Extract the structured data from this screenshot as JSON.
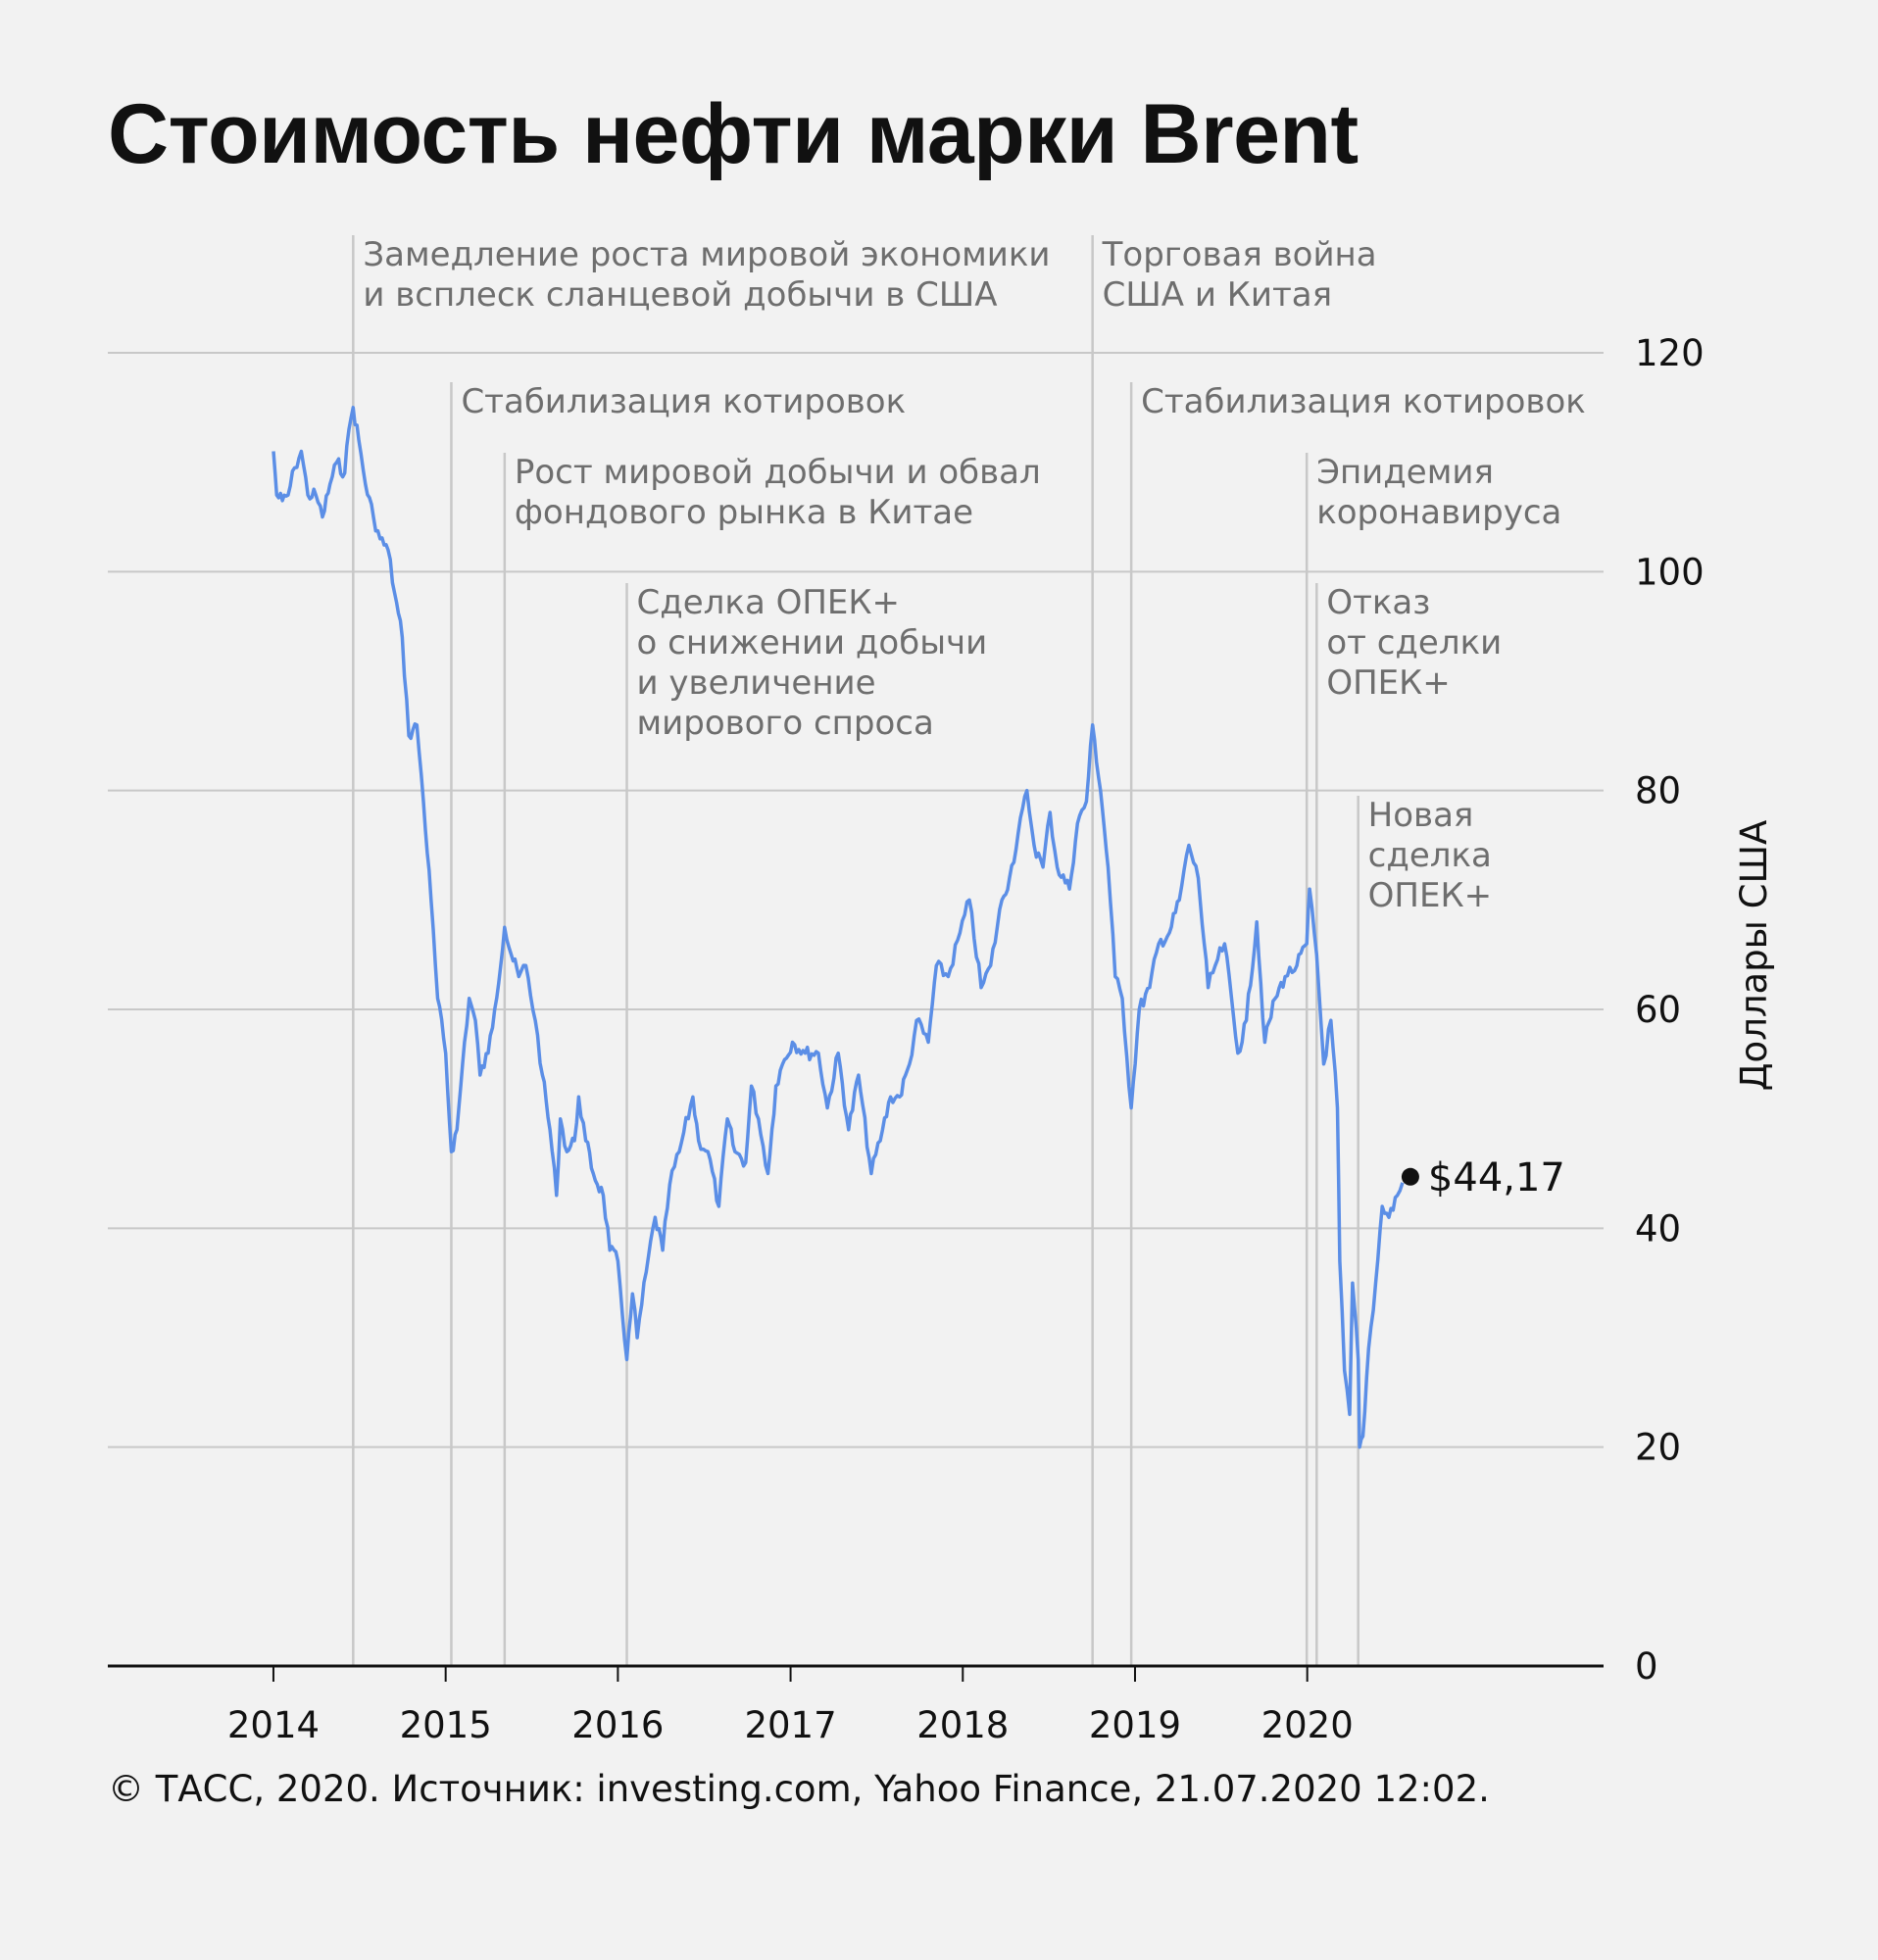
{
  "title": "Стоимость нефти марки Brent",
  "footer": "© ТАСС, 2020. Источник: investing.com, Yahoo Finance, 21.07.2020 12:02.",
  "colors": {
    "line": "#5b8ee6",
    "grid": "#c8c8c8",
    "axis": "#111111",
    "annotation_text": "#6e6e6e",
    "background": "#f2f2f2"
  },
  "chart_data": {
    "type": "line",
    "title": "Стоимость нефти марки Brent",
    "ylabel": "Доллары США",
    "ylim": [
      0,
      120
    ],
    "yticks": [
      0,
      20,
      40,
      60,
      80,
      100,
      120
    ],
    "xlim": [
      "2013-01-15",
      "2021-09-20"
    ],
    "xticks": [
      {
        "label": "2014",
        "date": "2014-01-01"
      },
      {
        "label": "2015",
        "date": "2015-01-01"
      },
      {
        "label": "2016",
        "date": "2016-01-01"
      },
      {
        "label": "2017",
        "date": "2017-01-01"
      },
      {
        "label": "2018",
        "date": "2018-01-01"
      },
      {
        "label": "2019",
        "date": "2019-01-01"
      },
      {
        "label": "2020",
        "date": "2020-01-01"
      }
    ],
    "grid": true,
    "last_point": {
      "date": "2020-07-21",
      "value": 44.17,
      "label": "$44,17"
    },
    "annotations": [
      {
        "date": "2014-06-19",
        "lines": [
          "Замедление роста мировой экономики",
          "и всплеск сланцевой добычи в США"
        ]
      },
      {
        "date": "2015-01-13",
        "lines": [
          "Стабилизация котировок"
        ]
      },
      {
        "date": "2015-05-06",
        "lines": [
          "Рост мировой добычи и обвал",
          "фондового рынка в Китае"
        ]
      },
      {
        "date": "2016-01-20",
        "lines": [
          "Сделка ОПЕК+",
          "о снижении добычи",
          "и увеличение",
          "мирового спроса"
        ]
      },
      {
        "date": "2018-10-03",
        "lines": [
          "Торговая война",
          "США и Китая"
        ]
      },
      {
        "date": "2018-12-24",
        "lines": [
          "Стабилизация котировок"
        ]
      },
      {
        "date": "2019-12-31",
        "lines": [
          "Эпидемия",
          "коронавируса"
        ]
      },
      {
        "date": "2020-01-21",
        "lines": [
          "Отказ",
          "от сделки",
          "ОПЕК+"
        ]
      },
      {
        "date": "2020-04-18",
        "lines": [
          "Новая",
          "сделка",
          "ОПЕК+"
        ]
      }
    ],
    "series": [
      {
        "values": [
          [
            "2014-01-01",
            111
          ],
          [
            "2014-01-08",
            107
          ],
          [
            "2014-01-20",
            106.5
          ],
          [
            "2014-02-01",
            107
          ],
          [
            "2014-02-15",
            109.5
          ],
          [
            "2014-03-01",
            111
          ],
          [
            "2014-03-15",
            107
          ],
          [
            "2014-04-01",
            107
          ],
          [
            "2014-04-15",
            105
          ],
          [
            "2014-05-01",
            108
          ],
          [
            "2014-05-15",
            110
          ],
          [
            "2014-06-01",
            109
          ],
          [
            "2014-06-10",
            113
          ],
          [
            "2014-06-19",
            115
          ],
          [
            "2014-07-01",
            112
          ],
          [
            "2014-07-15",
            108
          ],
          [
            "2014-08-01",
            105
          ],
          [
            "2014-08-15",
            103
          ],
          [
            "2014-09-01",
            102
          ],
          [
            "2014-09-15",
            98
          ],
          [
            "2014-10-01",
            94
          ],
          [
            "2014-10-15",
            85
          ],
          [
            "2014-11-01",
            86
          ],
          [
            "2014-11-15",
            79
          ],
          [
            "2014-12-01",
            70
          ],
          [
            "2014-12-15",
            61
          ],
          [
            "2015-01-01",
            56
          ],
          [
            "2015-01-13",
            47
          ],
          [
            "2015-01-25",
            49
          ],
          [
            "2015-02-10",
            57
          ],
          [
            "2015-02-20",
            61
          ],
          [
            "2015-03-05",
            59
          ],
          [
            "2015-03-15",
            54
          ],
          [
            "2015-04-01",
            56
          ],
          [
            "2015-04-15",
            60
          ],
          [
            "2015-05-06",
            67.5
          ],
          [
            "2015-05-20",
            65
          ],
          [
            "2015-06-05",
            63
          ],
          [
            "2015-06-20",
            64
          ],
          [
            "2015-07-10",
            59
          ],
          [
            "2015-07-25",
            54
          ],
          [
            "2015-08-10",
            49
          ],
          [
            "2015-08-24",
            43
          ],
          [
            "2015-09-01",
            50
          ],
          [
            "2015-09-15",
            47
          ],
          [
            "2015-10-01",
            48
          ],
          [
            "2015-10-10",
            52
          ],
          [
            "2015-10-25",
            48
          ],
          [
            "2015-11-10",
            45
          ],
          [
            "2015-12-01",
            43
          ],
          [
            "2015-12-15",
            38
          ],
          [
            "2016-01-01",
            37
          ],
          [
            "2016-01-20",
            28
          ],
          [
            "2016-02-01",
            34
          ],
          [
            "2016-02-11",
            30
          ],
          [
            "2016-03-01",
            36
          ],
          [
            "2016-03-20",
            41
          ],
          [
            "2016-04-05",
            38
          ],
          [
            "2016-04-20",
            44
          ],
          [
            "2016-05-10",
            47
          ],
          [
            "2016-06-08",
            52
          ],
          [
            "2016-06-20",
            48
          ],
          [
            "2016-07-10",
            47
          ],
          [
            "2016-08-02",
            42
          ],
          [
            "2016-08-20",
            50
          ],
          [
            "2016-09-05",
            47
          ],
          [
            "2016-09-28",
            46
          ],
          [
            "2016-10-10",
            53
          ],
          [
            "2016-10-25",
            50
          ],
          [
            "2016-11-14",
            45
          ],
          [
            "2016-12-01",
            53
          ],
          [
            "2016-12-15",
            55
          ],
          [
            "2017-01-05",
            57
          ],
          [
            "2017-02-01",
            56
          ],
          [
            "2017-03-01",
            56
          ],
          [
            "2017-03-20",
            51
          ],
          [
            "2017-04-12",
            56
          ],
          [
            "2017-05-04",
            49
          ],
          [
            "2017-05-25",
            54
          ],
          [
            "2017-06-21",
            45
          ],
          [
            "2017-07-15",
            49
          ],
          [
            "2017-08-01",
            52
          ],
          [
            "2017-08-20",
            52
          ],
          [
            "2017-09-10",
            55
          ],
          [
            "2017-09-25",
            59
          ],
          [
            "2017-10-20",
            57
          ],
          [
            "2017-11-06",
            64
          ],
          [
            "2017-12-01",
            63
          ],
          [
            "2017-12-26",
            67
          ],
          [
            "2018-01-15",
            70
          ],
          [
            "2018-02-09",
            62
          ],
          [
            "2018-03-01",
            64
          ],
          [
            "2018-03-25",
            70
          ],
          [
            "2018-04-10",
            72
          ],
          [
            "2018-05-17",
            80
          ],
          [
            "2018-06-01",
            75
          ],
          [
            "2018-06-20",
            73
          ],
          [
            "2018-07-05",
            78
          ],
          [
            "2018-07-20",
            73
          ],
          [
            "2018-08-15",
            71
          ],
          [
            "2018-09-01",
            77
          ],
          [
            "2018-09-20",
            79
          ],
          [
            "2018-10-03",
            86
          ],
          [
            "2018-10-20",
            80
          ],
          [
            "2018-11-05",
            73
          ],
          [
            "2018-11-20",
            63
          ],
          [
            "2018-12-05",
            61
          ],
          [
            "2018-12-24",
            51
          ],
          [
            "2019-01-10",
            60
          ],
          [
            "2019-02-01",
            62
          ],
          [
            "2019-02-20",
            66
          ],
          [
            "2019-03-15",
            67
          ],
          [
            "2019-04-05",
            70
          ],
          [
            "2019-04-25",
            75
          ],
          [
            "2019-05-15",
            72
          ],
          [
            "2019-06-05",
            62
          ],
          [
            "2019-06-20",
            64
          ],
          [
            "2019-07-10",
            66
          ],
          [
            "2019-08-07",
            56
          ],
          [
            "2019-08-25",
            59
          ],
          [
            "2019-09-16",
            68
          ],
          [
            "2019-10-03",
            57
          ],
          [
            "2019-10-25",
            61
          ],
          [
            "2019-11-15",
            63
          ],
          [
            "2019-12-10",
            64
          ],
          [
            "2019-12-31",
            66
          ],
          [
            "2020-01-06",
            71
          ],
          [
            "2020-01-21",
            65
          ],
          [
            "2020-02-05",
            55
          ],
          [
            "2020-02-20",
            59
          ],
          [
            "2020-03-05",
            51
          ],
          [
            "2020-03-10",
            37
          ],
          [
            "2020-03-20",
            27
          ],
          [
            "2020-03-31",
            23
          ],
          [
            "2020-04-06",
            35
          ],
          [
            "2020-04-18",
            28
          ],
          [
            "2020-04-21",
            20
          ],
          [
            "2020-04-28",
            21
          ],
          [
            "2020-05-10",
            29
          ],
          [
            "2020-05-25",
            35
          ],
          [
            "2020-06-08",
            42
          ],
          [
            "2020-06-22",
            41
          ],
          [
            "2020-07-10",
            43
          ],
          [
            "2020-07-21",
            44.17
          ]
        ]
      }
    ]
  }
}
